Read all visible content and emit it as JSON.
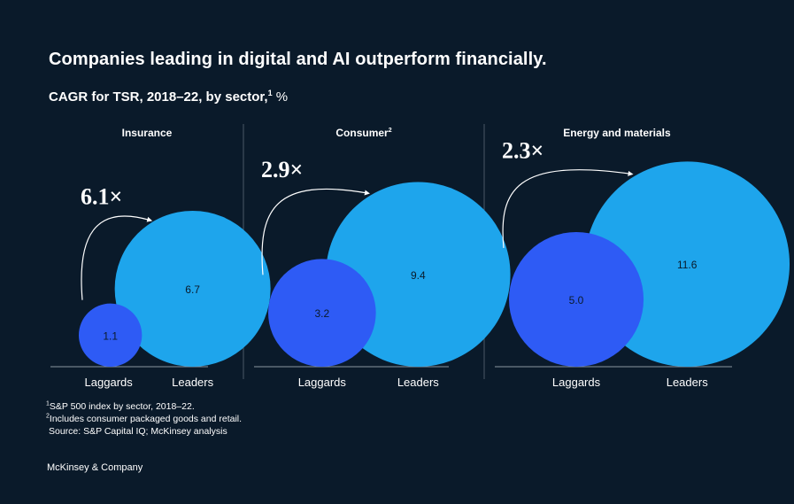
{
  "title": "Companies leading in digital and AI outperform financially.",
  "subtitle": {
    "text": "CAGR for TSR, 2018–22, by sector,",
    "footnote_marker": "1",
    "unit": "%"
  },
  "colors": {
    "background": "#0a1a2a",
    "laggards": "#2e5bf5",
    "leaders": "#1ea5ec",
    "divider": "#4a5866"
  },
  "chart_data": {
    "type": "bubble",
    "title": "Companies leading in digital and AI outperform financially.",
    "subtitle": "CAGR for TSR, 2018–22, by sector, %",
    "categories": [
      "Laggards",
      "Leaders"
    ],
    "panels": [
      {
        "sector": "Insurance",
        "footnote_marker": "",
        "multiplier": "6.1×",
        "values": [
          1.1,
          6.7
        ],
        "labels": [
          "1.1",
          "6.7"
        ]
      },
      {
        "sector": "Consumer",
        "footnote_marker": "2",
        "multiplier": "2.9×",
        "values": [
          3.2,
          9.4
        ],
        "labels": [
          "3.2",
          "9.4"
        ]
      },
      {
        "sector": "Energy and materials",
        "footnote_marker": "",
        "multiplier": "2.3×",
        "values": [
          5.0,
          11.6
        ],
        "labels": [
          "5.0",
          "11.6"
        ]
      }
    ]
  },
  "footnotes": [
    {
      "marker": "1",
      "text": "S&P 500 index by sector, 2018–22."
    },
    {
      "marker": "2",
      "text": "Includes consumer packaged goods and retail."
    }
  ],
  "source": "Source: S&P Capital IQ; McKinsey analysis",
  "brand": "McKinsey & Company"
}
